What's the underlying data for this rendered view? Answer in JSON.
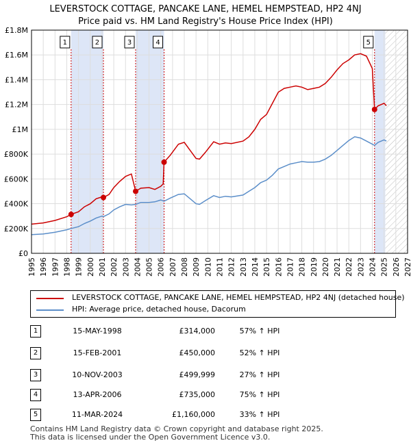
{
  "title_line1": "LEVERSTOCK COTTAGE, PANCAKE LANE, HEMEL HEMPSTEAD, HP2 4NJ",
  "title_line2": "Price paid vs. HM Land Registry's House Price Index (HPI)",
  "colors": {
    "property": "#cc0000",
    "hpi": "#5b8ec9",
    "band": "#dde6f7"
  },
  "chart_data": {
    "type": "line",
    "xlim": [
      1995,
      2027
    ],
    "ylim": [
      0,
      1800000
    ],
    "x_ticks": [
      "1995",
      "1996",
      "1997",
      "1998",
      "1999",
      "2000",
      "2001",
      "2002",
      "2003",
      "2004",
      "2005",
      "2006",
      "2007",
      "2008",
      "2009",
      "2010",
      "2011",
      "2012",
      "2013",
      "2014",
      "2015",
      "2016",
      "2017",
      "2018",
      "2019",
      "2020",
      "2021",
      "2022",
      "2023",
      "2024",
      "2025",
      "2026",
      "2027"
    ],
    "y_ticks": [
      {
        "value": 0,
        "label": "£0"
      },
      {
        "value": 200000,
        "label": "£200K"
      },
      {
        "value": 400000,
        "label": "£400K"
      },
      {
        "value": 600000,
        "label": "£600K"
      },
      {
        "value": 800000,
        "label": "£800K"
      },
      {
        "value": 1000000,
        "label": "£1M"
      },
      {
        "value": 1200000,
        "label": "£1.2M"
      },
      {
        "value": 1400000,
        "label": "£1.4M"
      },
      {
        "value": 1600000,
        "label": "£1.6M"
      },
      {
        "value": 1800000,
        "label": "£1.8M"
      }
    ],
    "forecast_start": 2025.1,
    "series": [
      {
        "name": "LEVERSTOCK COTTAGE, PANCAKE LANE, HEMEL HEMPSTEAD, HP2 4NJ (detached house)",
        "points": [
          [
            1995,
            235000
          ],
          [
            1996,
            245000
          ],
          [
            1997,
            265000
          ],
          [
            1998,
            295000
          ],
          [
            1998.37,
            314000
          ],
          [
            1999,
            335000
          ],
          [
            1999.5,
            375000
          ],
          [
            2000,
            400000
          ],
          [
            2000.5,
            440000
          ],
          [
            2001,
            455000
          ],
          [
            2001.12,
            450000
          ],
          [
            2001.6,
            475000
          ],
          [
            2002,
            530000
          ],
          [
            2002.5,
            580000
          ],
          [
            2003,
            620000
          ],
          [
            2003.5,
            640000
          ],
          [
            2003.86,
            499999
          ],
          [
            2004.3,
            525000
          ],
          [
            2005,
            530000
          ],
          [
            2005.5,
            515000
          ],
          [
            2006,
            540000
          ],
          [
            2006.2,
            560000
          ],
          [
            2006.28,
            735000
          ],
          [
            2006.8,
            790000
          ],
          [
            2007.5,
            880000
          ],
          [
            2008,
            895000
          ],
          [
            2008.5,
            830000
          ],
          [
            2009,
            765000
          ],
          [
            2009.3,
            760000
          ],
          [
            2009.8,
            815000
          ],
          [
            2010.5,
            900000
          ],
          [
            2011,
            880000
          ],
          [
            2011.5,
            890000
          ],
          [
            2012,
            885000
          ],
          [
            2013,
            905000
          ],
          [
            2013.5,
            940000
          ],
          [
            2014,
            1000000
          ],
          [
            2014.5,
            1080000
          ],
          [
            2015,
            1120000
          ],
          [
            2015.5,
            1210000
          ],
          [
            2016,
            1300000
          ],
          [
            2016.5,
            1330000
          ],
          [
            2017,
            1340000
          ],
          [
            2017.5,
            1350000
          ],
          [
            2018,
            1340000
          ],
          [
            2018.5,
            1320000
          ],
          [
            2019,
            1330000
          ],
          [
            2019.5,
            1340000
          ],
          [
            2020,
            1370000
          ],
          [
            2020.5,
            1420000
          ],
          [
            2021,
            1480000
          ],
          [
            2021.5,
            1530000
          ],
          [
            2022,
            1560000
          ],
          [
            2022.5,
            1600000
          ],
          [
            2023,
            1610000
          ],
          [
            2023.5,
            1590000
          ],
          [
            2024,
            1490000
          ],
          [
            2024.19,
            1160000
          ],
          [
            2024.5,
            1190000
          ],
          [
            2025,
            1210000
          ],
          [
            2025.2,
            1190000
          ]
        ]
      },
      {
        "name": "HPI: Average price, detached house, Dacorum",
        "points": [
          [
            1995,
            150000
          ],
          [
            1996,
            156000
          ],
          [
            1997,
            170000
          ],
          [
            1998,
            190000
          ],
          [
            1998.37,
            200000
          ],
          [
            1999,
            215000
          ],
          [
            1999.5,
            240000
          ],
          [
            2000,
            260000
          ],
          [
            2000.5,
            285000
          ],
          [
            2001,
            300000
          ],
          [
            2001.12,
            296000
          ],
          [
            2001.6,
            318000
          ],
          [
            2002,
            350000
          ],
          [
            2002.5,
            375000
          ],
          [
            2003,
            395000
          ],
          [
            2003.5,
            390000
          ],
          [
            2003.86,
            395000
          ],
          [
            2004.3,
            410000
          ],
          [
            2005,
            410000
          ],
          [
            2005.5,
            415000
          ],
          [
            2006,
            430000
          ],
          [
            2006.28,
            420000
          ],
          [
            2006.8,
            445000
          ],
          [
            2007.5,
            475000
          ],
          [
            2008,
            480000
          ],
          [
            2008.5,
            440000
          ],
          [
            2009,
            400000
          ],
          [
            2009.3,
            395000
          ],
          [
            2009.8,
            425000
          ],
          [
            2010.5,
            465000
          ],
          [
            2011,
            450000
          ],
          [
            2011.5,
            460000
          ],
          [
            2012,
            455000
          ],
          [
            2013,
            470000
          ],
          [
            2013.5,
            500000
          ],
          [
            2014,
            530000
          ],
          [
            2014.5,
            570000
          ],
          [
            2015,
            590000
          ],
          [
            2015.5,
            630000
          ],
          [
            2016,
            680000
          ],
          [
            2016.5,
            700000
          ],
          [
            2017,
            720000
          ],
          [
            2017.5,
            730000
          ],
          [
            2018,
            740000
          ],
          [
            2018.5,
            735000
          ],
          [
            2019,
            735000
          ],
          [
            2019.5,
            740000
          ],
          [
            2020,
            760000
          ],
          [
            2020.5,
            790000
          ],
          [
            2021,
            830000
          ],
          [
            2021.5,
            870000
          ],
          [
            2022,
            910000
          ],
          [
            2022.5,
            940000
          ],
          [
            2023,
            930000
          ],
          [
            2023.5,
            905000
          ],
          [
            2024,
            880000
          ],
          [
            2024.19,
            870000
          ],
          [
            2024.5,
            895000
          ],
          [
            2025,
            915000
          ],
          [
            2025.2,
            905000
          ]
        ]
      }
    ],
    "sales": [
      {
        "label": "1",
        "x": 1998.37,
        "y": 314000
      },
      {
        "label": "2",
        "x": 2001.12,
        "y": 450000
      },
      {
        "label": "3",
        "x": 2003.86,
        "y": 499999
      },
      {
        "label": "4",
        "x": 2006.28,
        "y": 735000
      },
      {
        "label": "5",
        "x": 2024.19,
        "y": 1160000
      }
    ]
  },
  "legend": {
    "property": "LEVERSTOCK COTTAGE, PANCAKE LANE, HEMEL HEMPSTEAD, HP2 4NJ (detached house)",
    "hpi": "HPI: Average price, detached house, Dacorum"
  },
  "transactions": [
    {
      "num": "1",
      "date": "15-MAY-1998",
      "price": "£314,000",
      "hpi": "57% ↑ HPI"
    },
    {
      "num": "2",
      "date": "15-FEB-2001",
      "price": "£450,000",
      "hpi": "52% ↑ HPI"
    },
    {
      "num": "3",
      "date": "10-NOV-2003",
      "price": "£499,999",
      "hpi": "27% ↑ HPI"
    },
    {
      "num": "4",
      "date": "13-APR-2006",
      "price": "£735,000",
      "hpi": "75% ↑ HPI"
    },
    {
      "num": "5",
      "date": "11-MAR-2024",
      "price": "£1,160,000",
      "hpi": "33% ↑ HPI"
    }
  ],
  "footer_line1": "Contains HM Land Registry data © Crown copyright and database right 2025.",
  "footer_line2": "This data is licensed under the Open Government Licence v3.0."
}
